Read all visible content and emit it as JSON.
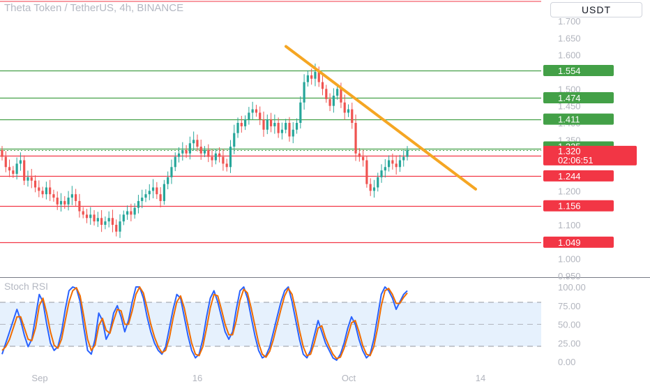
{
  "header": {
    "title": "Theta Token / TetherUS, 4h, BINANCE",
    "currency": "USDT"
  },
  "indicator": {
    "label": "Stoch RSI"
  },
  "chart_data": [
    {
      "type": "candlestick",
      "title": "Theta Token / TetherUS, 4h, BINANCE",
      "ylim": [
        0.93,
        1.72
      ],
      "y_ticks": [
        "1.700",
        "1.650",
        "1.600",
        "1.550",
        "1.500",
        "1.450",
        "1.400",
        "1.350",
        "1.300",
        "1.250",
        "1.200",
        "1.150",
        "1.100",
        "1.050",
        "1.000",
        "0.950"
      ],
      "y_tick_values": [
        1.7,
        1.65,
        1.6,
        1.55,
        1.5,
        1.45,
        1.4,
        1.35,
        1.3,
        1.25,
        1.2,
        1.15,
        1.1,
        1.05,
        1.0,
        0.95
      ],
      "x_ticks": [
        "Sep",
        "16",
        "Oct",
        "14"
      ],
      "grid": false,
      "price_levels": [
        {
          "label": "1.554",
          "value": 1.554,
          "color": "#43a047"
        },
        {
          "label": "1.474",
          "value": 1.474,
          "color": "#43a047"
        },
        {
          "label": "1.411",
          "value": 1.411,
          "color": "#43a047"
        },
        {
          "label": "1.325",
          "value": 1.325,
          "color": "#43a047"
        },
        {
          "label": "1.304",
          "value": 1.304,
          "color": "#f23645"
        },
        {
          "label": "1.244",
          "value": 1.244,
          "color": "#f23645"
        },
        {
          "label": "1.156",
          "value": 1.156,
          "color": "#f23645"
        },
        {
          "label": "1.049",
          "value": 1.049,
          "color": "#f23645"
        }
      ],
      "last_price": {
        "label": "1.320",
        "value": 1.32,
        "countdown": "02:06:51",
        "color": "#f23645"
      },
      "trendline": {
        "start": 1.625,
        "end": 1.205,
        "color": "#f5a623"
      },
      "closes": [
        1.3,
        1.27,
        1.26,
        1.25,
        1.28,
        1.29,
        1.23,
        1.24,
        1.23,
        1.21,
        1.2,
        1.19,
        1.21,
        1.19,
        1.18,
        1.16,
        1.17,
        1.16,
        1.18,
        1.19,
        1.17,
        1.14,
        1.13,
        1.12,
        1.13,
        1.11,
        1.12,
        1.1,
        1.11,
        1.12,
        1.1,
        1.08,
        1.11,
        1.13,
        1.14,
        1.13,
        1.15,
        1.17,
        1.18,
        1.19,
        1.2,
        1.21,
        1.19,
        1.17,
        1.22,
        1.24,
        1.27,
        1.3,
        1.31,
        1.32,
        1.31,
        1.34,
        1.35,
        1.33,
        1.31,
        1.32,
        1.3,
        1.29,
        1.31,
        1.3,
        1.28,
        1.27,
        1.33,
        1.37,
        1.4,
        1.39,
        1.41,
        1.43,
        1.44,
        1.43,
        1.41,
        1.38,
        1.41,
        1.39,
        1.4,
        1.37,
        1.38,
        1.4,
        1.36,
        1.38,
        1.4,
        1.46,
        1.52,
        1.54,
        1.53,
        1.55,
        1.52,
        1.5,
        1.47,
        1.45,
        1.48,
        1.5,
        1.46,
        1.43,
        1.44,
        1.4,
        1.31,
        1.3,
        1.29,
        1.22,
        1.2,
        1.21,
        1.24,
        1.26,
        1.27,
        1.29,
        1.28,
        1.27,
        1.29,
        1.3,
        1.32
      ]
    },
    {
      "type": "line",
      "title": "Stoch RSI",
      "ylim": [
        -5,
        105
      ],
      "y_ticks": [
        "100.00",
        "75.00",
        "50.00",
        "25.00",
        "0.00"
      ],
      "y_tick_values": [
        100,
        75,
        50,
        25,
        0
      ],
      "band": [
        20,
        80
      ],
      "series": [
        {
          "color": "#2962ff",
          "values": [
            10,
            25,
            40,
            55,
            70,
            55,
            35,
            20,
            30,
            60,
            90,
            80,
            50,
            25,
            15,
            20,
            40,
            70,
            95,
            100,
            98,
            80,
            45,
            15,
            10,
            30,
            65,
            55,
            30,
            40,
            65,
            75,
            60,
            40,
            55,
            80,
            100,
            100,
            85,
            60,
            40,
            25,
            15,
            10,
            20,
            45,
            70,
            90,
            85,
            60,
            35,
            15,
            5,
            10,
            30,
            60,
            85,
            95,
            80,
            60,
            40,
            30,
            40,
            70,
            95,
            100,
            85,
            60,
            35,
            15,
            5,
            8,
            20,
            40,
            60,
            80,
            95,
            100,
            80,
            55,
            30,
            10,
            5,
            15,
            35,
            55,
            40,
            25,
            15,
            5,
            2,
            10,
            25,
            45,
            60,
            50,
            30,
            15,
            5,
            10,
            30,
            60,
            90,
            100,
            95,
            85,
            70,
            80,
            90,
            95
          ]
        },
        {
          "color": "#ef6c00",
          "values": [
            15,
            20,
            30,
            45,
            60,
            60,
            45,
            30,
            28,
            45,
            75,
            85,
            65,
            40,
            22,
            18,
            30,
            55,
            80,
            95,
            99,
            88,
            60,
            30,
            15,
            22,
            48,
            58,
            42,
            38,
            55,
            70,
            68,
            50,
            50,
            68,
            90,
            100,
            92,
            72,
            50,
            33,
            20,
            12,
            15,
            32,
            58,
            80,
            88,
            72,
            48,
            25,
            10,
            8,
            20,
            45,
            72,
            90,
            88,
            70,
            50,
            36,
            36,
            55,
            82,
            97,
            92,
            72,
            48,
            25,
            10,
            6,
            14,
            30,
            50,
            70,
            88,
            98,
            90,
            68,
            42,
            20,
            8,
            10,
            25,
            45,
            48,
            32,
            20,
            10,
            4,
            6,
            18,
            35,
            52,
            55,
            40,
            22,
            10,
            8,
            20,
            45,
            75,
            95,
            98,
            90,
            78,
            78,
            86,
            92
          ]
        }
      ],
      "x_ticks": [
        "Sep",
        "16",
        "Oct",
        "14"
      ]
    }
  ]
}
